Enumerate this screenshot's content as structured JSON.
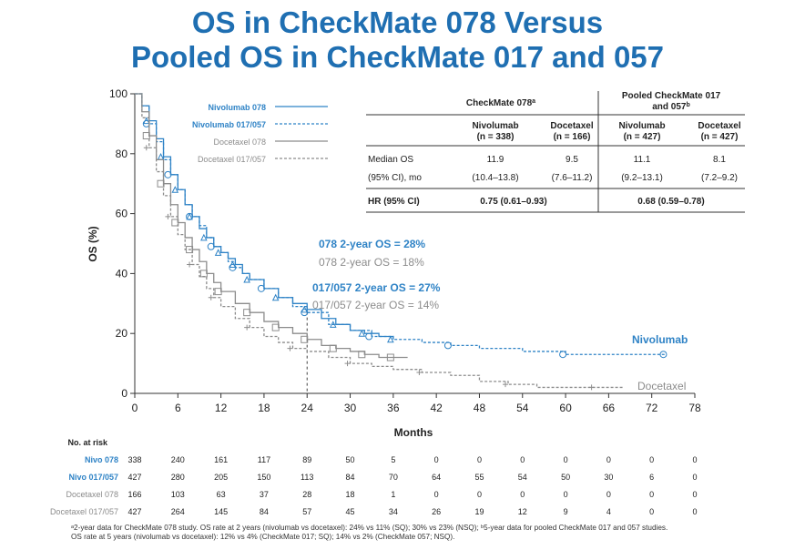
{
  "title": {
    "line1": "OS in CheckMate 078 Versus",
    "line2": "Pooled OS in CheckMate 017 and 057"
  },
  "colors": {
    "nivo": "#2f83c6",
    "doce": "#8c8c8c",
    "title": "#1f6fb2"
  },
  "chart_data": {
    "type": "line",
    "title": "Kaplan-Meier overall survival",
    "xlabel": "Months",
    "ylabel": "OS (%)",
    "xlim": [
      0,
      78
    ],
    "ylim": [
      0,
      100
    ],
    "xticks": [
      0,
      6,
      12,
      18,
      24,
      30,
      36,
      42,
      48,
      54,
      60,
      66,
      72,
      78
    ],
    "yticks": [
      0,
      20,
      40,
      60,
      80,
      100
    ],
    "reference_x": 24,
    "legend_position": "top-left",
    "series": [
      {
        "name": "Nivolumab 078",
        "style": "solid",
        "color": "#2f83c6",
        "x": [
          0,
          1,
          2,
          3,
          4,
          5,
          6,
          7,
          8,
          9,
          10,
          11,
          12,
          13,
          14,
          15,
          16,
          18,
          20,
          22,
          24,
          26,
          28,
          30,
          32,
          34,
          36
        ],
        "y": [
          100,
          96,
          91,
          85,
          79,
          73,
          68,
          63,
          59,
          55,
          52,
          49,
          47,
          45,
          43,
          40,
          38,
          35,
          32,
          30,
          28,
          25,
          23,
          21,
          20,
          19,
          18
        ]
      },
      {
        "name": "Nivolumab 017/057",
        "style": "dashed",
        "color": "#2f83c6",
        "x": [
          0,
          1,
          2,
          3,
          4,
          5,
          6,
          7,
          8,
          9,
          10,
          11,
          12,
          13,
          14,
          15,
          16,
          18,
          20,
          22,
          24,
          27,
          30,
          33,
          36,
          40,
          44,
          48,
          54,
          60,
          66,
          70,
          74
        ],
        "y": [
          100,
          96,
          90,
          84,
          78,
          73,
          68,
          63,
          59,
          56,
          52,
          49,
          47,
          44,
          42,
          40,
          38,
          35,
          32,
          29,
          27,
          23,
          21,
          19,
          18,
          17,
          16,
          15,
          14,
          13,
          13,
          13,
          13
        ]
      },
      {
        "name": "Docetaxel 078",
        "style": "solid",
        "color": "#8c8c8c",
        "x": [
          0,
          1,
          2,
          3,
          4,
          5,
          6,
          7,
          8,
          9,
          10,
          11,
          12,
          14,
          16,
          18,
          20,
          22,
          24,
          26,
          28,
          30,
          32,
          34,
          36,
          38
        ],
        "y": [
          100,
          94,
          86,
          78,
          70,
          63,
          57,
          52,
          48,
          44,
          40,
          37,
          34,
          30,
          27,
          24,
          22,
          20,
          18,
          16,
          15,
          14,
          13,
          12,
          12,
          12
        ]
      },
      {
        "name": "Docetaxel 017/057",
        "style": "dashed",
        "color": "#8c8c8c",
        "x": [
          0,
          1,
          2,
          3,
          4,
          5,
          6,
          7,
          8,
          9,
          10,
          11,
          12,
          14,
          16,
          18,
          20,
          22,
          24,
          27,
          30,
          33,
          36,
          40,
          44,
          48,
          52,
          56,
          60,
          64,
          68
        ],
        "y": [
          100,
          92,
          82,
          74,
          66,
          59,
          53,
          48,
          43,
          39,
          35,
          32,
          29,
          25,
          22,
          19,
          17,
          15,
          14,
          12,
          10,
          9,
          8,
          7,
          6,
          4,
          3,
          2,
          2,
          2,
          2
        ]
      }
    ],
    "annotations": {
      "nivo078_2yr": "078 2-year OS = 28%",
      "doce078_2yr": "078 2-year OS = 18%",
      "nivo017_2yr": "017/057 2-year OS = 27%",
      "doce017_2yr": "017/057 2-year OS = 14%",
      "nivo_end": "Nivolumab",
      "doce_end": "Docetaxel"
    }
  },
  "legend": [
    {
      "label": "Nivolumab 078",
      "style": "solid",
      "color": "#2f83c6"
    },
    {
      "label": "Nivolumab 017/057",
      "style": "dashed",
      "color": "#2f83c6"
    },
    {
      "label": "Docetaxel 078",
      "style": "solid",
      "color": "#8c8c8c"
    },
    {
      "label": "Docetaxel 017/057",
      "style": "dashed",
      "color": "#8c8c8c"
    }
  ],
  "table": {
    "group1": "CheckMate 078",
    "group1_sup": "a",
    "group2_line1": "Pooled CheckMate 017",
    "group2_line2": "and 057",
    "group2_sup": "b",
    "columns": [
      {
        "name": "Nivolumab",
        "n": "(n = 338)"
      },
      {
        "name": "Docetaxel",
        "n": "(n = 166)"
      },
      {
        "name": "Nivolumab",
        "n": "(n = 427)"
      },
      {
        "name": "Docetaxel",
        "n": "(n = 427)"
      }
    ],
    "row1_label": "Median OS",
    "row1_values": [
      "11.9",
      "9.5",
      "11.1",
      "8.1"
    ],
    "row2_label": "(95% CI), mo",
    "row2_values": [
      "(10.4–13.8)",
      "(7.6–11.2)",
      "(9.2–13.1)",
      "(7.2–9.2)"
    ],
    "hr_label": "HR (95% CI)",
    "hr_values": [
      "0.75 (0.61–0.93)",
      "0.68 (0.59–0.78)"
    ]
  },
  "risk": {
    "header": "No. at risk",
    "rows": [
      {
        "label": "Nivo 078",
        "color": "#2f83c6",
        "values": [
          "338",
          "240",
          "161",
          "117",
          "89",
          "50",
          "5",
          "0",
          "0",
          "0",
          "0",
          "0",
          "0",
          "0"
        ]
      },
      {
        "label": "Nivo 017/057",
        "color": "#2f83c6",
        "values": [
          "427",
          "280",
          "205",
          "150",
          "113",
          "84",
          "70",
          "64",
          "55",
          "54",
          "50",
          "30",
          "6",
          "0"
        ]
      },
      {
        "label": "Docetaxel 078",
        "color": "#8c8c8c",
        "values": [
          "166",
          "103",
          "63",
          "37",
          "28",
          "18",
          "1",
          "0",
          "0",
          "0",
          "0",
          "0",
          "0",
          "0"
        ]
      },
      {
        "label": "Docetaxel 017/057",
        "color": "#8c8c8c",
        "values": [
          "427",
          "264",
          "145",
          "84",
          "57",
          "45",
          "34",
          "26",
          "19",
          "12",
          "9",
          "4",
          "0",
          "0"
        ]
      }
    ]
  },
  "footnote": {
    "line1": "ᵃ2-year data for CheckMate 078 study. OS rate at 2 years (nivolumab vs docetaxel): 24% vs 11% (SQ); 30% vs 23% (NSQ); ᵇ5-year data for pooled CheckMate 017 and 057 studies.",
    "line2": "OS rate at 5 years (nivolumab vs docetaxel): 12% vs 4% (CheckMate 017; SQ); 14% vs 2% (CheckMate 057; NSQ)."
  }
}
